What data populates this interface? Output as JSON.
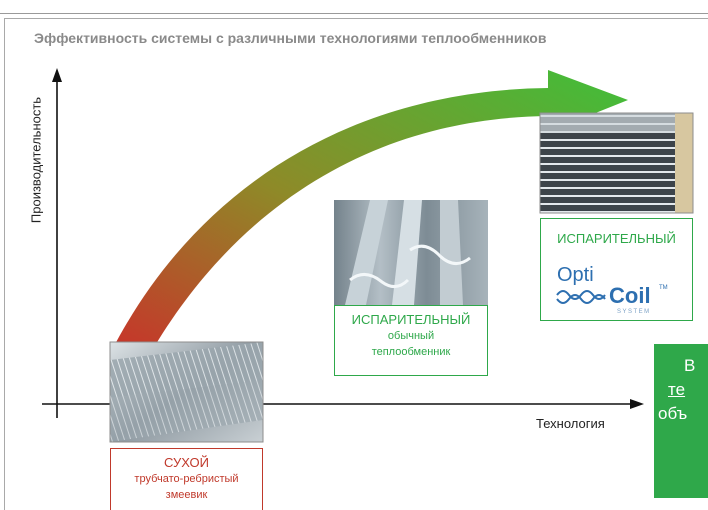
{
  "title": "Эффективность системы с различными технологиями теплообменников",
  "y_axis_label": "Производительность",
  "x_axis_label": "Технология",
  "cards": {
    "dry": {
      "main": "СУХОЙ",
      "sub1": "трубчато-ребристый",
      "sub2": "змеевик"
    },
    "evaporative": {
      "main": "ИСПАРИТЕЛЬНЫЙ",
      "sub1": "обычный",
      "sub2": "теплообменник"
    },
    "opticoil": {
      "main": "ИСПАРИТЕЛЬНЫЙ",
      "logo_opti": "Opti",
      "logo_coil": "Coil",
      "logo_tm": "TM",
      "logo_system": "SYSTEM"
    }
  },
  "cut_box": {
    "line1": "В",
    "line2": "те",
    "line3": "объ"
  },
  "colors": {
    "red": "#c0392b",
    "green": "#2ea84a",
    "arrow_start": "#c9322a",
    "arrow_end": "#3fbf3a"
  }
}
